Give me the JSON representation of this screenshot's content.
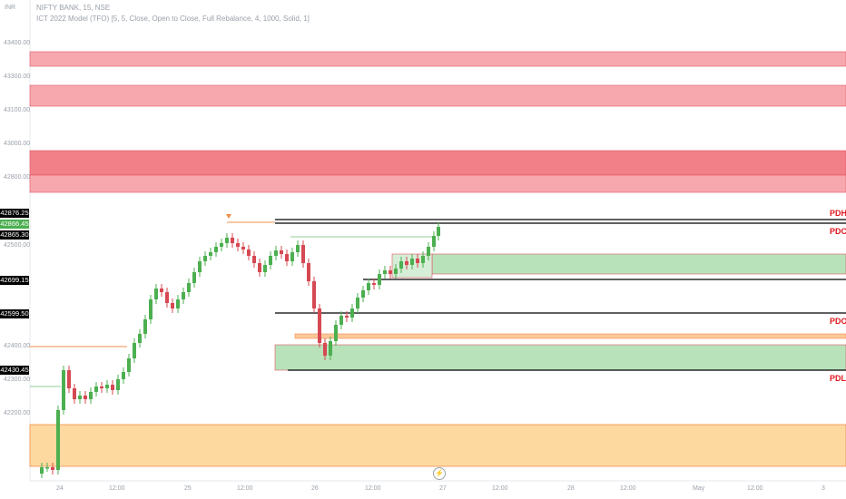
{
  "legend": {
    "symbol": "NIFTY BANK, 15, NSE",
    "indicator": "ICT 2022 Model (TFO) [5, 5, Close, Open to Close, Full Rebalance, 4, 1000, Solid, 1]"
  },
  "currency": "INR",
  "flags": {
    "pdh": "PDH",
    "pdc": "PDC",
    "pdo": "PDO",
    "pdl": "PDL"
  },
  "price_tags": [
    "42876.25",
    "42866.45",
    "42865.30",
    "42699.15",
    "42599.50",
    "42430.45"
  ],
  "y_axis": [
    "43400.00",
    "43300.00",
    "43100.00",
    "43000.00",
    "42800.00",
    "42500.00",
    "42400.00",
    "42300.00",
    "42200.00"
  ],
  "x_axis": [
    "24",
    "12:00",
    "25",
    "12:00",
    "26",
    "12:00",
    "27",
    "12:00",
    "28",
    "12:00",
    "May",
    "12:00",
    "3"
  ],
  "colors": {
    "bull": "#4caf50",
    "bear": "#d64852",
    "red_zone": "#f7a8ae",
    "red_zone_dark": "#f28088",
    "green_zone": "#b7e2ba",
    "orange_zone": "#fdd9a0"
  },
  "icons": {
    "event": "lightning-icon"
  }
}
